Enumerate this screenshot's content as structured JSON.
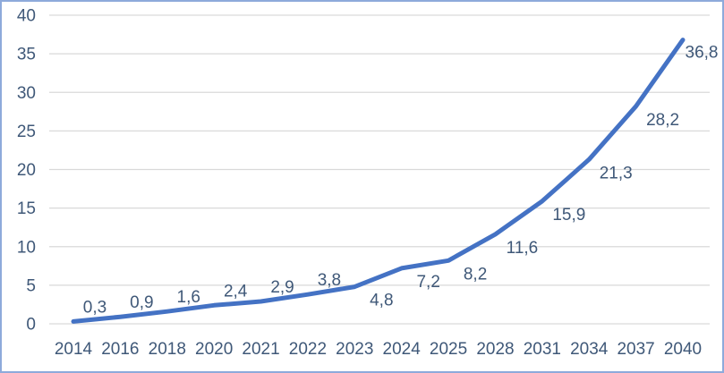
{
  "chart_data": {
    "type": "line",
    "title": "",
    "xlabel": "",
    "ylabel": "",
    "categories": [
      "2014",
      "2016",
      "2018",
      "2020",
      "2021",
      "2022",
      "2023",
      "2024",
      "2025",
      "2028",
      "2031",
      "2034",
      "2037",
      "2040"
    ],
    "values": [
      0.3,
      0.9,
      1.6,
      2.4,
      2.9,
      3.8,
      4.8,
      7.2,
      8.2,
      11.6,
      15.9,
      21.3,
      28.2,
      36.8
    ],
    "data_labels": [
      "0,3",
      "0,9",
      "1,6",
      "2,4",
      "2,9",
      "3,8",
      "4,8",
      "7,2",
      "8,2",
      "11,6",
      "15,9",
      "21,3",
      "28,2",
      "36,8"
    ],
    "label_placement": [
      "above",
      "above",
      "above",
      "above",
      "above",
      "above",
      "below",
      "below",
      "below",
      "below",
      "below",
      "below",
      "below",
      "right"
    ],
    "yticks": [
      0,
      5,
      10,
      15,
      20,
      25,
      30,
      35,
      40
    ],
    "ylim": [
      0,
      40
    ],
    "grid": true,
    "legend": "none",
    "colors": {
      "line": "#4472C4",
      "text": "#3F5878",
      "gridline": "#D9D9D9",
      "frame_border": "#8EAADB",
      "background": "#FFFFFF"
    }
  }
}
